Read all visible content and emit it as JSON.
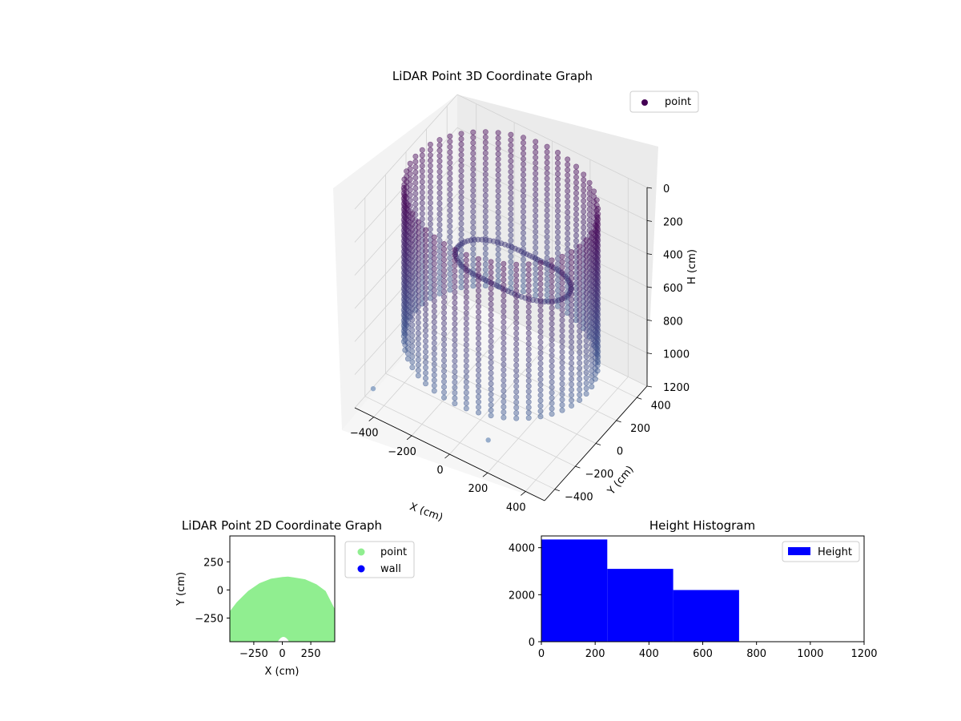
{
  "chart_data": [
    {
      "type": "scatter",
      "projection": "3d",
      "title": "LiDAR Point 3D Coordinate Graph",
      "xlabel": "X (cm)",
      "ylabel": "Y (cm)",
      "zlabel": "H (cm)",
      "xticks": [
        -400,
        -200,
        0,
        200,
        400
      ],
      "yticks": [
        400,
        200,
        0,
        -200,
        -400
      ],
      "zticks": [
        0,
        200,
        400,
        600,
        800,
        1000,
        1200
      ],
      "xlim": [
        -500,
        500
      ],
      "ylim": [
        -500,
        500
      ],
      "zlim": [
        0,
        1200
      ],
      "z_inverted": true,
      "grid": true,
      "colormap": "viridis (dark purple to slate blue)",
      "legend": {
        "entries": [
          "point"
        ],
        "placement": "top-right"
      },
      "series": [
        {
          "name": "point",
          "description": "cylindrical point cloud, radius about 450 cm, heights 0 to about 950 cm",
          "radius_cm": 450,
          "h_range": [
            0,
            950
          ],
          "outliers": [
            {
              "x": -430,
              "y": -450,
              "h": 1080
            },
            {
              "x": 160,
              "y": -420,
              "h": 1080
            }
          ]
        }
      ]
    },
    {
      "type": "scatter",
      "title": "LiDAR Point 2D Coordinate Graph",
      "xlabel": "X (cm)",
      "ylabel": "Y (cm)",
      "xticks": [
        -250,
        0,
        250
      ],
      "yticks": [
        250,
        0,
        -250
      ],
      "xlim": [
        -460,
        460
      ],
      "ylim": [
        -460,
        480
      ],
      "legend": {
        "entries": [
          "point",
          "wall"
        ],
        "placement": "outside-right"
      },
      "series": [
        {
          "name": "point",
          "color": "#90ee90",
          "description": "dense filled region, upper boundary near y = 120 at x = 50, fills to bottom edge",
          "boundary_top": [
            [
              -460,
              -190
            ],
            [
              -400,
              -110
            ],
            [
              -300,
              -10
            ],
            [
              -200,
              60
            ],
            [
              -100,
              100
            ],
            [
              0,
              115
            ],
            [
              50,
              118
            ],
            [
              100,
              112
            ],
            [
              200,
              95
            ],
            [
              300,
              50
            ],
            [
              380,
              -10
            ],
            [
              460,
              -170
            ]
          ]
        },
        {
          "name": "wall",
          "color": "#0000ff"
        }
      ]
    },
    {
      "type": "bar",
      "subtype": "histogram",
      "title": "Height Histogram",
      "xlim": [
        0,
        1200
      ],
      "ylim": [
        0,
        4500
      ],
      "xticks": [
        0,
        200,
        400,
        600,
        800,
        1000,
        1200
      ],
      "yticks": [
        0,
        2000,
        4000
      ],
      "bins": [
        [
          0,
          245
        ],
        [
          245,
          490
        ],
        [
          490,
          735
        ]
      ],
      "values": [
        4350,
        3100,
        2200
      ],
      "color": "#0000ff",
      "legend": {
        "entries": [
          "Height"
        ],
        "placement": "top-right"
      }
    }
  ]
}
